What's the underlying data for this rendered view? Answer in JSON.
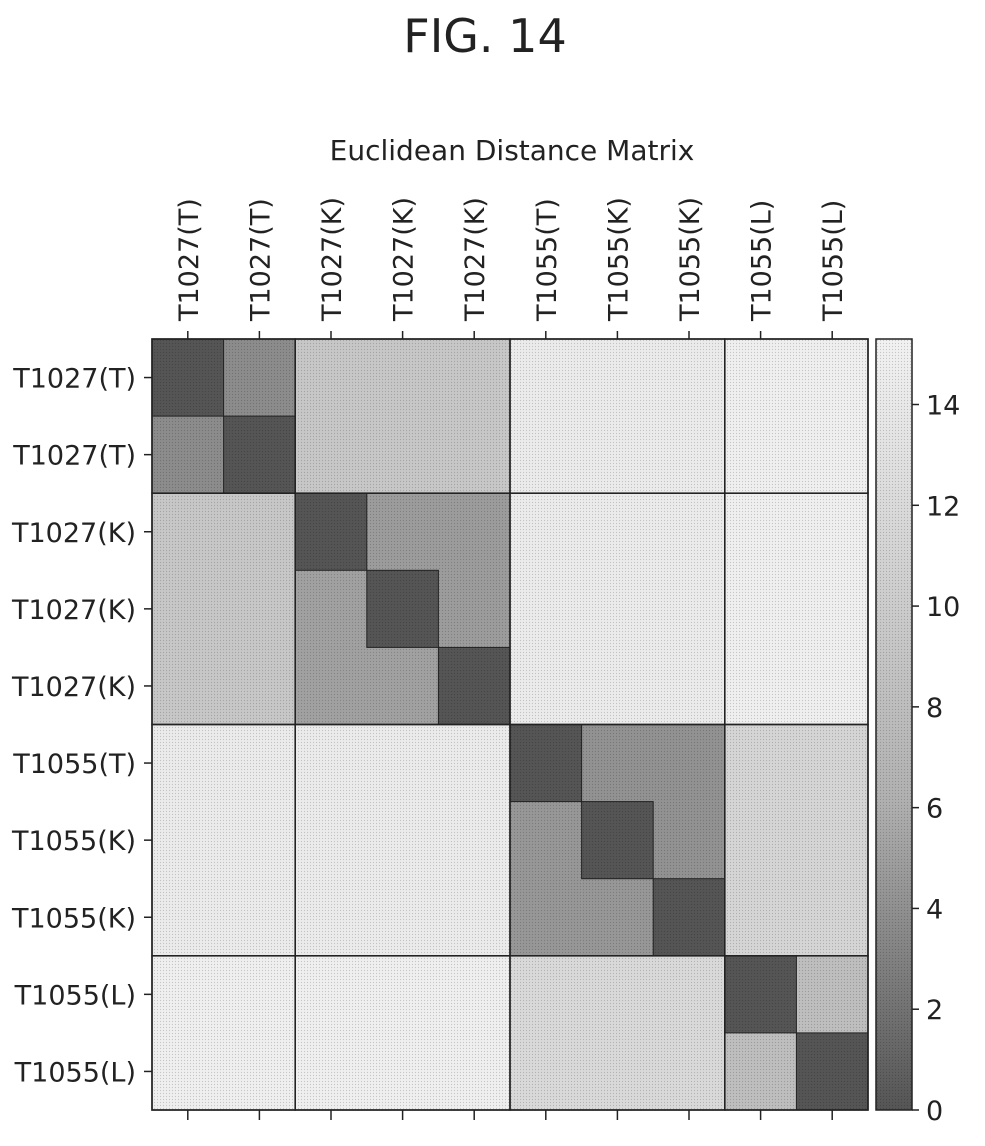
{
  "figure_label": "FIG. 14",
  "chart_data": {
    "type": "heatmap",
    "title": "Euclidean Distance Matrix",
    "row_labels": [
      "T1027(T)",
      "T1027(T)",
      "T1027(K)",
      "T1027(K)",
      "T1027(K)",
      "T1055(T)",
      "T1055(K)",
      "T1055(K)",
      "T1055(L)",
      "T1055(L)"
    ],
    "col_labels": [
      "T1027(T)",
      "T1027(T)",
      "T1027(K)",
      "T1027(K)",
      "T1027(K)",
      "T1055(T)",
      "T1055(K)",
      "T1055(K)",
      "T1055(L)",
      "T1055(L)"
    ],
    "values": [
      [
        0.0,
        4.5,
        10.5,
        10.5,
        10.5,
        14.5,
        14.5,
        14.5,
        15.0,
        15.0
      ],
      [
        4.5,
        0.0,
        10.5,
        10.5,
        10.5,
        14.5,
        14.5,
        14.5,
        15.0,
        15.0
      ],
      [
        10.5,
        10.5,
        0.0,
        6.0,
        6.0,
        14.5,
        14.5,
        14.5,
        15.0,
        15.0
      ],
      [
        10.5,
        10.5,
        6.5,
        0.0,
        6.0,
        14.5,
        14.5,
        14.5,
        15.0,
        15.0
      ],
      [
        10.5,
        10.5,
        6.5,
        6.5,
        0.0,
        14.5,
        14.5,
        14.5,
        15.0,
        15.0
      ],
      [
        14.5,
        14.5,
        14.5,
        14.5,
        14.5,
        0.0,
        5.0,
        5.0,
        12.0,
        12.0
      ],
      [
        14.5,
        14.5,
        14.5,
        14.5,
        14.5,
        5.5,
        0.0,
        5.0,
        12.0,
        12.0
      ],
      [
        14.5,
        14.5,
        14.5,
        14.5,
        14.5,
        5.5,
        5.5,
        0.0,
        12.0,
        12.0
      ],
      [
        15.0,
        15.0,
        15.0,
        15.0,
        15.0,
        12.5,
        12.5,
        12.5,
        0.0,
        9.5
      ],
      [
        15.0,
        15.0,
        15.0,
        15.0,
        15.0,
        12.5,
        12.5,
        12.5,
        9.5,
        0.0
      ]
    ],
    "group_boundaries": [
      2,
      5,
      8
    ],
    "inner_boundaries": [
      {
        "row": 0,
        "col": 0
      },
      {
        "row": 1,
        "col": 1
      },
      {
        "row": 2,
        "col": 2
      },
      {
        "row": 3,
        "col": 3
      },
      {
        "row": 4,
        "col": 4
      },
      {
        "row": 5,
        "col": 5
      },
      {
        "row": 6,
        "col": 6
      },
      {
        "row": 7,
        "col": 7
      },
      {
        "row": 8,
        "col": 8
      },
      {
        "row": 9,
        "col": 9
      }
    ],
    "colorbar": {
      "ticks": [
        "0",
        "2",
        "4",
        "6",
        "8",
        "10",
        "12",
        "14"
      ],
      "range": [
        0,
        15.3
      ]
    },
    "colors": {
      "low": "#555555",
      "high": "#f2f2f2",
      "border": "#222222"
    }
  }
}
